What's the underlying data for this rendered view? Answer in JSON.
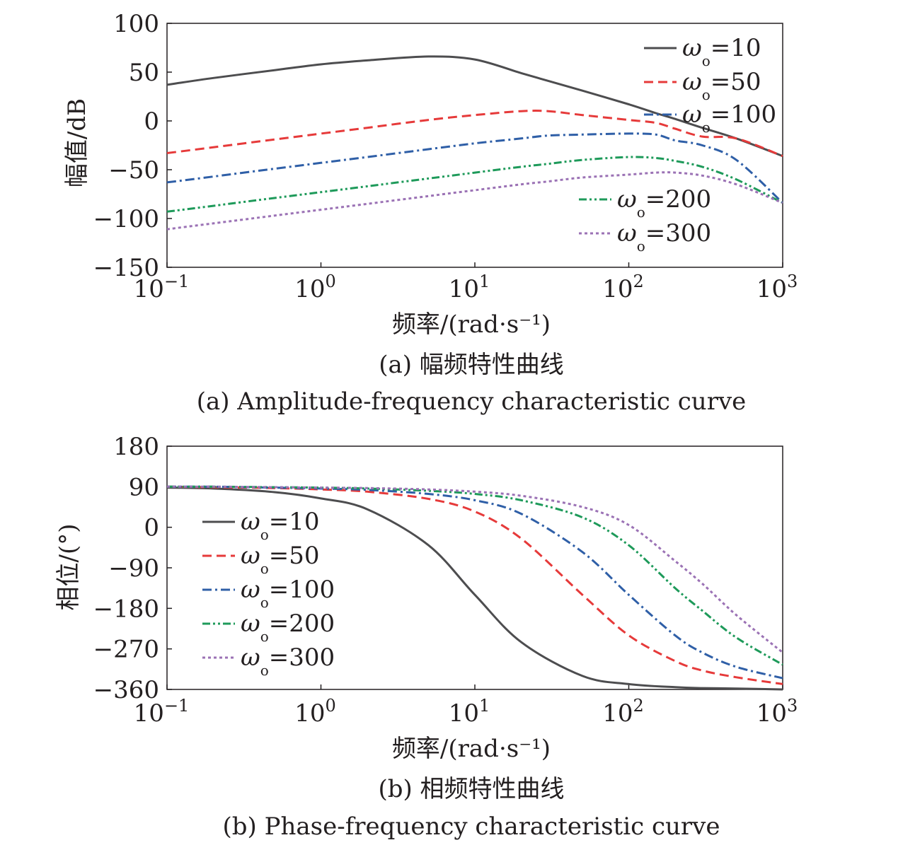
{
  "figure": {
    "caption_a_cn": "(a) 幅频特性曲线",
    "caption_a_en": "(a) Amplitude-frequency characteristic curve",
    "caption_b_cn": "(b) 相频特性曲线",
    "caption_b_en": "(b) Phase-frequency characteristic curve"
  },
  "chart_data": [
    {
      "type": "line",
      "id": "amplitude",
      "xlabel": "频率/(rad·s⁻¹)",
      "ylabel": "幅值/dB",
      "xscale": "log",
      "xlim": [
        0.1,
        1000
      ],
      "ylim": [
        -150,
        100
      ],
      "xticks": [
        {
          "base": "10",
          "exp": "−1"
        },
        {
          "base": "10",
          "exp": "0"
        },
        {
          "base": "10",
          "exp": "1"
        },
        {
          "base": "10",
          "exp": "2"
        },
        {
          "base": "10",
          "exp": "3"
        }
      ],
      "yticks": [
        "100",
        "50",
        "0",
        "−50",
        "−100",
        "−150"
      ],
      "ytick_values": [
        100,
        50,
        0,
        -50,
        -100,
        -150
      ],
      "x": [
        0.1,
        0.2,
        0.5,
        1,
        2,
        5,
        10,
        20,
        30,
        50,
        100,
        150,
        200,
        300,
        500,
        1000
      ],
      "series": [
        {
          "name": "ωo=10",
          "label_sym": "ω",
          "label_sub": "o",
          "label_rest": "=10",
          "color": "#4d4d4f",
          "dash": "solid",
          "values": [
            37,
            44,
            52,
            58,
            62,
            66,
            63,
            49,
            41,
            31,
            17,
            8,
            2,
            -7,
            -18,
            -36
          ]
        },
        {
          "name": "ωo=50",
          "label_sym": "ω",
          "label_sub": "o",
          "label_rest": "=50",
          "color": "#e63a3a",
          "dash": "dash",
          "values": [
            -33,
            -27,
            -19,
            -13,
            -7,
            1,
            6,
            10,
            10,
            6,
            1,
            -2,
            -8,
            -16,
            -18,
            -36
          ]
        },
        {
          "name": "ωo=100",
          "label_sym": "ω",
          "label_sub": "o",
          "label_rest": "=100",
          "color": "#2f5fa7",
          "dash": "dashdot",
          "values": [
            -63,
            -57,
            -49,
            -43,
            -37,
            -29,
            -23,
            -18,
            -15,
            -14,
            -13,
            -14,
            -20,
            -25,
            -40,
            -84
          ]
        },
        {
          "name": "ωo=200",
          "label_sym": "ω",
          "label_sub": "o",
          "label_rest": "=200",
          "color": "#1e9a5a",
          "dash": "dashdotdot",
          "values": [
            -93,
            -87,
            -79,
            -73,
            -67,
            -59,
            -53,
            -47,
            -44,
            -40,
            -37,
            -38,
            -41,
            -47,
            -60,
            -84
          ]
        },
        {
          "name": "ωo=300",
          "label_sym": "ω",
          "label_sub": "o",
          "label_rest": "=300",
          "color": "#9b72b5",
          "dash": "dot",
          "values": [
            -111,
            -105,
            -97,
            -91,
            -85,
            -77,
            -71,
            -65,
            -62,
            -58,
            -55,
            -53,
            -53,
            -56,
            -65,
            -84
          ]
        }
      ],
      "legend": "top-right (ωo=10, 50, 100) and lower-center (ωo=200, 300)"
    },
    {
      "type": "line",
      "id": "phase",
      "xlabel": "频率/(rad·s⁻¹)",
      "ylabel": "相位/(°)",
      "xscale": "log",
      "xlim": [
        0.1,
        1000
      ],
      "ylim": [
        -360,
        180
      ],
      "xticks": [
        {
          "base": "10",
          "exp": "−1"
        },
        {
          "base": "10",
          "exp": "0"
        },
        {
          "base": "10",
          "exp": "1"
        },
        {
          "base": "10",
          "exp": "2"
        },
        {
          "base": "10",
          "exp": "3"
        }
      ],
      "yticks": [
        "180",
        "90",
        "0",
        "−90",
        "−180",
        "−270",
        "−360"
      ],
      "ytick_values": [
        180,
        90,
        0,
        -90,
        -180,
        -270,
        -360
      ],
      "x": [
        0.1,
        0.2,
        0.5,
        1,
        2,
        5,
        10,
        20,
        50,
        100,
        200,
        300,
        500,
        1000
      ],
      "series": [
        {
          "name": "ωo=10",
          "label_sym": "ω",
          "label_sub": "o",
          "label_rest": "=10",
          "color": "#4d4d4f",
          "dash": "solid",
          "values": [
            88,
            86,
            78,
            64,
            40,
            -40,
            -150,
            -255,
            -330,
            -348,
            -355,
            -357,
            -358,
            -360
          ]
        },
        {
          "name": "ωo=50",
          "label_sym": "ω",
          "label_sub": "o",
          "label_rest": "=50",
          "color": "#e63a3a",
          "dash": "dash",
          "values": [
            90,
            89,
            87,
            84,
            79,
            63,
            35,
            -25,
            -150,
            -240,
            -297,
            -318,
            -333,
            -348
          ]
        },
        {
          "name": "ωo=100",
          "label_sym": "ω",
          "label_sub": "o",
          "label_rest": "=100",
          "color": "#2f5fa7",
          "dash": "dashdot",
          "values": [
            90,
            90,
            88,
            86,
            83,
            74,
            60,
            30,
            -55,
            -150,
            -240,
            -278,
            -310,
            -335
          ]
        },
        {
          "name": "ωo=200",
          "label_sym": "ω",
          "label_sub": "o",
          "label_rest": "=200",
          "color": "#1e9a5a",
          "dash": "dashdotdot",
          "values": [
            90,
            90,
            89,
            88,
            86,
            81,
            74,
            60,
            22,
            -40,
            -135,
            -185,
            -245,
            -305
          ]
        },
        {
          "name": "ωo=300",
          "label_sym": "ω",
          "label_sub": "o",
          "label_rest": "=300",
          "color": "#9b72b5",
          "dash": "dot",
          "values": [
            90,
            90,
            89,
            88,
            87,
            84,
            79,
            70,
            45,
            5,
            -75,
            -125,
            -195,
            -278
          ]
        }
      ],
      "legend": "left-center"
    }
  ]
}
